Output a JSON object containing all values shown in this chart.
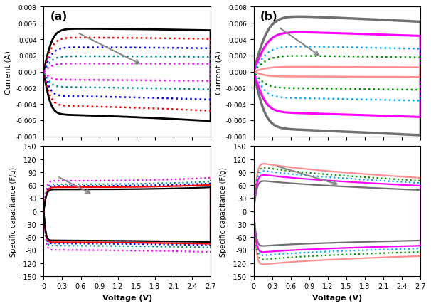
{
  "panel_a_cv_colors": [
    "#000000",
    "#ff0000",
    "#0000ff",
    "#009090",
    "#ff00ff"
  ],
  "panel_a_cv_lw": [
    2.0,
    1.8,
    1.8,
    1.8,
    1.8
  ],
  "panel_a_cv_imax": [
    0.0053,
    0.0042,
    0.003,
    0.0019,
    0.001
  ],
  "panel_a_cv_dotted": [
    false,
    true,
    true,
    true,
    true
  ],
  "panel_b_cv_colors": [
    "#707070",
    "#ff00ff",
    "#00aaff",
    "#009900",
    "#ff9090"
  ],
  "panel_b_cv_lw": [
    2.5,
    2.2,
    1.8,
    1.8,
    1.8
  ],
  "panel_b_cv_imax": [
    0.007,
    0.005,
    0.0032,
    0.002,
    0.0006
  ],
  "panel_b_cv_dotted": [
    false,
    false,
    true,
    true,
    false
  ],
  "panel_a_cap_colors": [
    "#ff00ff",
    "#009090",
    "#0000ff",
    "#ff0000",
    "#000000"
  ],
  "panel_a_cap_cmax_fwd": [
    70,
    62,
    58,
    55,
    50
  ],
  "panel_a_cap_cmax_rev": [
    90,
    80,
    75,
    72,
    68
  ],
  "panel_a_cap_dotted": [
    true,
    true,
    true,
    false,
    false
  ],
  "panel_b_cap_colors": [
    "#ff9090",
    "#009900",
    "#00aaff",
    "#ff00ff",
    "#707070"
  ],
  "panel_b_cap_cmax_fwd": [
    118,
    108,
    100,
    90,
    75
  ],
  "panel_b_cap_cmax_rev": [
    130,
    118,
    108,
    100,
    85
  ],
  "panel_b_cap_dotted": [
    false,
    true,
    true,
    false,
    false
  ],
  "cv_ylim": [
    -0.008,
    0.008
  ],
  "cap_ylim": [
    -150,
    150
  ],
  "xlim": [
    0,
    2.7
  ],
  "xticks": [
    0.0,
    0.3,
    0.6,
    0.9,
    1.2,
    1.5,
    1.8,
    2.1,
    2.4,
    2.7
  ],
  "xlabel": "Voltage (V)",
  "ylabel_cv": "Current (A)",
  "ylabel_cap": "Specific capacitance (F/g)",
  "arrow_color": "#888888",
  "figsize": [
    6.06,
    4.31
  ],
  "dpi": 100
}
